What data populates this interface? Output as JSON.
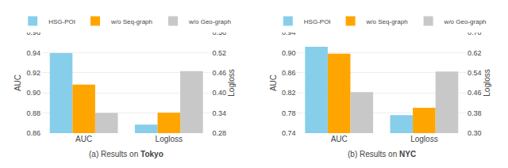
{
  "chart_data": [
    {
      "type": "bar",
      "title": "(a) Results on Tokyo",
      "categories": [
        "AUC",
        "Logloss"
      ],
      "ylabel": "AUC",
      "y2label": "Logloss",
      "series": [
        {
          "name": "HSG-POI",
          "color": "#87CEEB",
          "values": [
            0.9395,
            null
          ]
        },
        {
          "name": "w/o Seq-graph",
          "color": "#FFA500",
          "values": [
            0.9082,
            null
          ]
        },
        {
          "name": "w/o Geo-graph",
          "color": "#C8C8C8",
          "values": [
            0.88,
            null
          ]
        },
        {
          "name": "HSG-POI",
          "color": "#87CEEB",
          "axis": "y2",
          "values": [
            null,
            0.3055
          ]
        },
        {
          "name": "w/o Seq-graph",
          "color": "#FFA500",
          "axis": "y2",
          "values": [
            null,
            0.341
          ]
        },
        {
          "name": "w/o Geo-graph",
          "color": "#C8C8C8",
          "axis": "y2",
          "values": [
            null,
            0.465
          ]
        }
      ],
      "ylim": [
        0.86,
        0.96
      ],
      "yticks": [
        0.86,
        0.88,
        {
          "value": 0.9,
          "label": "0.90"
        },
        0.92,
        0.94,
        0.96
      ],
      "y2lim": [
        0.28,
        0.58
      ],
      "y2ticks": [
        0.28,
        0.34,
        {
          "value": 0.4,
          "label": "0.40"
        },
        0.46,
        0.52,
        0.58
      ],
      "grid": true,
      "legend": "top"
    },
    {
      "type": "bar",
      "title": "(b) Results on NYC",
      "categories": [
        "AUC",
        "Logloss"
      ],
      "ylabel": "AUC",
      "y2label": "Logloss",
      "series": [
        {
          "name": "HSG-POI",
          "color": "#87CEEB",
          "values": [
            0.9115,
            null
          ]
        },
        {
          "name": "w/o Seq-graph",
          "color": "#FFA500",
          "values": [
            0.898,
            null
          ]
        },
        {
          "name": "w/o Geo-graph",
          "color": "#C8C8C8",
          "values": [
            0.8215,
            null
          ]
        },
        {
          "name": "HSG-POI",
          "color": "#87CEEB",
          "axis": "y2",
          "values": [
            null,
            0.372
          ]
        },
        {
          "name": "w/o Seq-graph",
          "color": "#FFA500",
          "axis": "y2",
          "values": [
            null,
            0.401
          ]
        },
        {
          "name": "w/o Geo-graph",
          "color": "#C8C8C8",
          "axis": "y2",
          "values": [
            null,
            0.545
          ]
        }
      ],
      "ylim": [
        0.74,
        0.94
      ],
      "yticks": [
        0.74,
        0.78,
        0.82,
        0.86,
        {
          "value": 0.9,
          "label": "0.90"
        },
        0.94
      ],
      "y2lim": [
        0.3,
        0.7
      ],
      "y2ticks": [
        {
          "value": 0.3,
          "label": "0.30"
        },
        0.38,
        0.46,
        0.54,
        0.62,
        {
          "value": 0.7,
          "label": "0.70"
        }
      ],
      "grid": true,
      "legend": "top"
    }
  ]
}
